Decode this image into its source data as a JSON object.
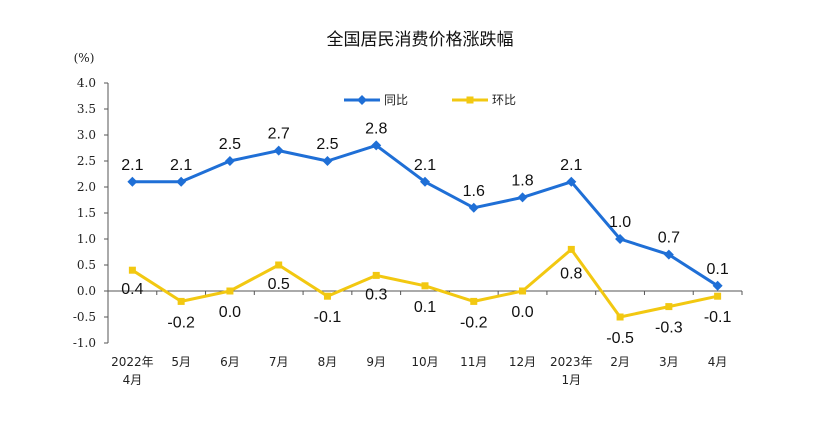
{
  "chart_data": {
    "type": "line",
    "title": "全国居民消费价格涨跌幅",
    "unit_label": "(%)",
    "ylim": [
      -1.0,
      4.0
    ],
    "yticks": [
      "4.0",
      "3.5",
      "3.0",
      "2.5",
      "2.0",
      "1.5",
      "1.0",
      "0.5",
      "0.0",
      "-0.5",
      "-1.0"
    ],
    "ytick_values": [
      4.0,
      3.5,
      3.0,
      2.5,
      2.0,
      1.5,
      1.0,
      0.5,
      0.0,
      -0.5,
      -1.0
    ],
    "categories": [
      [
        "2022年",
        "4月"
      ],
      [
        "5月"
      ],
      [
        "6月"
      ],
      [
        "7月"
      ],
      [
        "8月"
      ],
      [
        "9月"
      ],
      [
        "10月"
      ],
      [
        "11月"
      ],
      [
        "12月"
      ],
      [
        "2023年",
        "1月"
      ],
      [
        "2月"
      ],
      [
        "3月"
      ],
      [
        "4月"
      ]
    ],
    "legend_position": "top-center",
    "series": [
      {
        "name": "同比",
        "color": "#1f6fd6",
        "marker": "diamond",
        "values": [
          2.1,
          2.1,
          2.5,
          2.7,
          2.5,
          2.8,
          2.1,
          1.6,
          1.8,
          2.1,
          1.0,
          0.7,
          0.1
        ],
        "labels": [
          "2.1",
          "2.1",
          "2.5",
          "2.7",
          "2.5",
          "2.8",
          "2.1",
          "1.6",
          "1.8",
          "2.1",
          "1.0",
          "0.7",
          "0.1"
        ]
      },
      {
        "name": "环比",
        "color": "#f2c811",
        "marker": "square",
        "values": [
          0.4,
          -0.2,
          0.0,
          0.5,
          -0.1,
          0.3,
          0.1,
          -0.2,
          0.0,
          0.8,
          -0.5,
          -0.3,
          -0.1
        ],
        "labels": [
          "0.4",
          "-0.2",
          "0.0",
          "0.5",
          "-0.1",
          "0.3",
          "0.1",
          "-0.2",
          "0.0",
          "0.8",
          "-0.5",
          "-0.3",
          "-0.1"
        ]
      }
    ]
  }
}
